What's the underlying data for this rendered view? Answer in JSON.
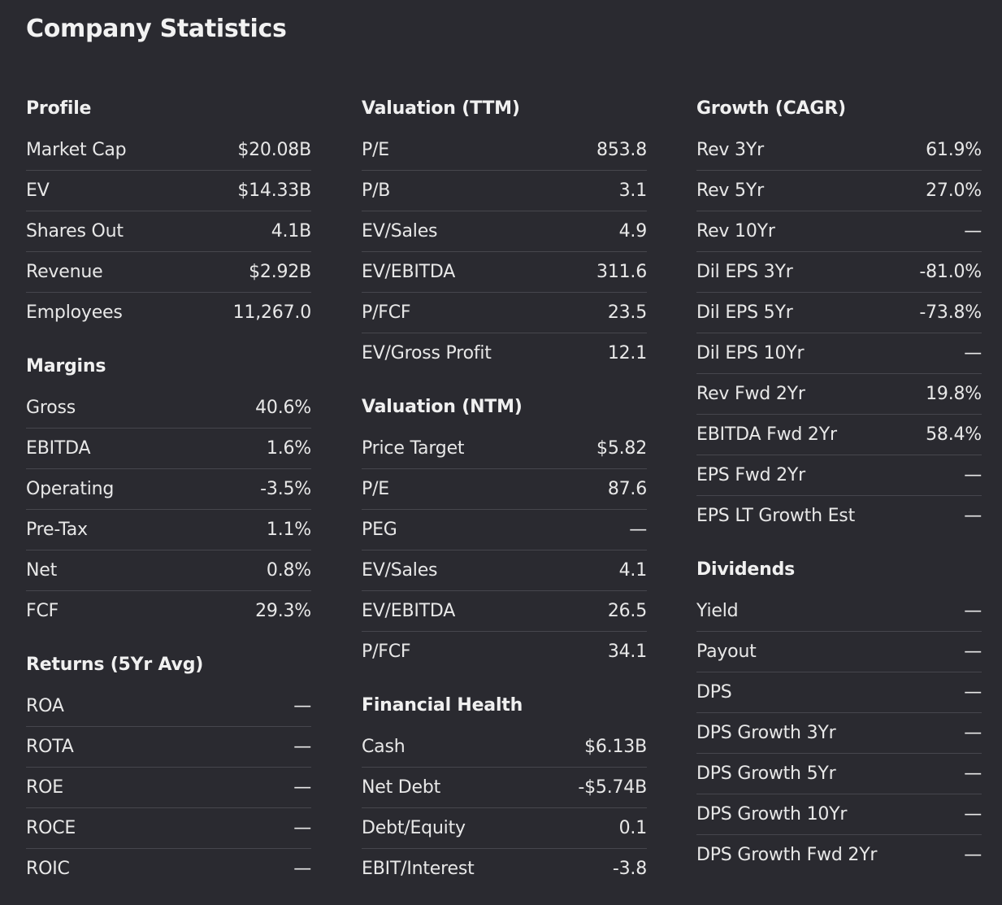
{
  "title": "Company Statistics",
  "columns": [
    {
      "sections": [
        {
          "title": "Profile",
          "rows": [
            {
              "label": "Market Cap",
              "value": "$20.08B"
            },
            {
              "label": "EV",
              "value": "$14.33B"
            },
            {
              "label": "Shares Out",
              "value": "4.1B"
            },
            {
              "label": "Revenue",
              "value": "$2.92B"
            },
            {
              "label": "Employees",
              "value": "11,267.0"
            }
          ]
        },
        {
          "title": "Margins",
          "rows": [
            {
              "label": "Gross",
              "value": "40.6%"
            },
            {
              "label": "EBITDA",
              "value": "1.6%"
            },
            {
              "label": "Operating",
              "value": "-3.5%"
            },
            {
              "label": "Pre-Tax",
              "value": "1.1%"
            },
            {
              "label": "Net",
              "value": "0.8%"
            },
            {
              "label": "FCF",
              "value": "29.3%"
            }
          ]
        },
        {
          "title": "Returns (5Yr Avg)",
          "rows": [
            {
              "label": "ROA",
              "value": "—"
            },
            {
              "label": "ROTA",
              "value": "—"
            },
            {
              "label": "ROE",
              "value": "—"
            },
            {
              "label": "ROCE",
              "value": "—"
            },
            {
              "label": "ROIC",
              "value": "—"
            }
          ]
        }
      ]
    },
    {
      "sections": [
        {
          "title": "Valuation (TTM)",
          "rows": [
            {
              "label": "P/E",
              "value": "853.8"
            },
            {
              "label": "P/B",
              "value": "3.1"
            },
            {
              "label": "EV/Sales",
              "value": "4.9"
            },
            {
              "label": "EV/EBITDA",
              "value": "311.6"
            },
            {
              "label": "P/FCF",
              "value": "23.5"
            },
            {
              "label": "EV/Gross Profit",
              "value": "12.1"
            }
          ]
        },
        {
          "title": "Valuation (NTM)",
          "rows": [
            {
              "label": "Price Target",
              "value": "$5.82"
            },
            {
              "label": "P/E",
              "value": "87.6"
            },
            {
              "label": "PEG",
              "value": "—"
            },
            {
              "label": "EV/Sales",
              "value": "4.1"
            },
            {
              "label": "EV/EBITDA",
              "value": "26.5"
            },
            {
              "label": "P/FCF",
              "value": "34.1"
            }
          ]
        },
        {
          "title": "Financial Health",
          "rows": [
            {
              "label": "Cash",
              "value": "$6.13B"
            },
            {
              "label": "Net Debt",
              "value": "-$5.74B"
            },
            {
              "label": "Debt/Equity",
              "value": "0.1"
            },
            {
              "label": "EBIT/Interest",
              "value": "-3.8"
            }
          ]
        }
      ]
    },
    {
      "sections": [
        {
          "title": "Growth (CAGR)",
          "rows": [
            {
              "label": "Rev 3Yr",
              "value": "61.9%"
            },
            {
              "label": "Rev 5Yr",
              "value": "27.0%"
            },
            {
              "label": "Rev 10Yr",
              "value": "—"
            },
            {
              "label": "Dil EPS 3Yr",
              "value": "-81.0%"
            },
            {
              "label": "Dil EPS 5Yr",
              "value": "-73.8%"
            },
            {
              "label": "Dil EPS 10Yr",
              "value": "—"
            },
            {
              "label": "Rev Fwd 2Yr",
              "value": "19.8%"
            },
            {
              "label": "EBITDA Fwd 2Yr",
              "value": "58.4%"
            },
            {
              "label": "EPS Fwd 2Yr",
              "value": "—"
            },
            {
              "label": "EPS LT Growth Est",
              "value": "—"
            }
          ]
        },
        {
          "title": "Dividends",
          "rows": [
            {
              "label": "Yield",
              "value": "—"
            },
            {
              "label": "Payout",
              "value": "—"
            },
            {
              "label": "DPS",
              "value": "—"
            },
            {
              "label": "DPS Growth 3Yr",
              "value": "—"
            },
            {
              "label": "DPS Growth 5Yr",
              "value": "—"
            },
            {
              "label": "DPS Growth 10Yr",
              "value": "—"
            },
            {
              "label": "DPS Growth Fwd 2Yr",
              "value": "—"
            }
          ]
        }
      ]
    }
  ]
}
